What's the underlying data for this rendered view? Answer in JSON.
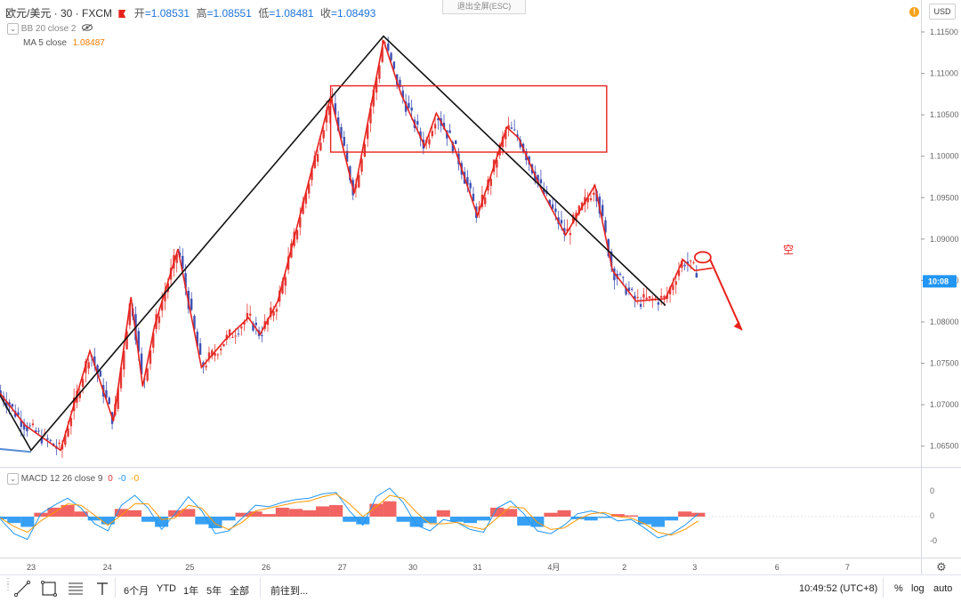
{
  "header": {
    "symbol": "欧元/美元 · 30 · FXCM",
    "open_label": "开",
    "open": "=1.08531",
    "high_label": "高",
    "high": "=1.08551",
    "low_label": "低",
    "low": "=1.08481",
    "close_label": "收",
    "close": "=1.08493",
    "exit_fullscreen": "退出全屏(ESC)",
    "currency": "USD",
    "alert_badge": "!"
  },
  "indicators": {
    "bb": "BB 20 close 2",
    "ma": "MA 5 close",
    "ma_value": "1.08487",
    "macd": "MACD 12 26 close 9",
    "macd_v1": "0",
    "macd_v2": "-0",
    "macd_v3": "-0"
  },
  "chart_data": {
    "type": "line",
    "price_axis": {
      "ticks": [
        "1.11500",
        "1.11000",
        "1.10500",
        "1.10000",
        "1.09500",
        "1.09000",
        "1.08500",
        "1.08000",
        "1.07500",
        "1.07000",
        "1.06500"
      ],
      "ylim": [
        1.0625,
        1.1165
      ],
      "current_label": "10:08",
      "current_price": 1.0849
    },
    "macd_axis": {
      "ticks": [
        "0",
        "0",
        "-0"
      ]
    },
    "x_ticks": [
      "23",
      "24",
      "25",
      "26",
      "27",
      "30",
      "31",
      "4月",
      "2",
      "3",
      "6",
      "7"
    ],
    "x_tick_index": [
      0,
      6.5,
      13.5,
      20,
      26.5,
      32.5,
      38,
      44.5,
      50.5,
      56.5,
      63.5,
      69.5
    ],
    "price_path_x": [
      -3,
      -0.5,
      2.5,
      5,
      7,
      8.5,
      9.5,
      10.5,
      12.5,
      14.5,
      16.5,
      18.5,
      19.5,
      21,
      25.5,
      27.5,
      30,
      31.5,
      33.5,
      34.5,
      36,
      38,
      40.5,
      41.5,
      43.5,
      45.5,
      48,
      49.5,
      51.5,
      54,
      55.5,
      56.5,
      58
    ],
    "price_path_y": [
      1.072,
      1.0675,
      1.0645,
      1.0765,
      1.068,
      1.083,
      1.0722,
      1.0795,
      1.0888,
      1.0745,
      1.0778,
      1.0805,
      1.0785,
      1.0825,
      1.1072,
      1.0955,
      1.114,
      1.1075,
      1.1012,
      1.1052,
      1.1012,
      1.0928,
      1.1035,
      1.1022,
      1.0958,
      1.0905,
      1.0965,
      1.0862,
      1.0825,
      1.0828,
      1.0875,
      1.0862,
      1.0865
    ],
    "annotations": {
      "zigzag_black_x": [
        -3,
        0,
        30,
        54
      ],
      "zigzag_black_y": [
        1.072,
        1.0645,
        1.1145,
        1.082
      ],
      "box": {
        "x_start": 25.5,
        "x_end": 49,
        "y_top": 1.1085,
        "y_bottom": 1.1005
      },
      "short_label": "空",
      "forecast_arrow_x": [
        56.5,
        60.5
      ],
      "forecast_arrow_y": [
        1.0878,
        1.079
      ],
      "blue_trendline_x": [
        -3,
        0
      ],
      "blue_trendline_y": [
        1.0647,
        1.0643
      ]
    },
    "macd_hist": [
      -0.2,
      -0.5,
      -0.8,
      0.3,
      0.7,
      0.9,
      0.4,
      -0.3,
      -0.6,
      0.6,
      0.5,
      -0.4,
      -0.8,
      0.5,
      0.6,
      -0.6,
      -0.9,
      -0.3,
      0.3,
      0.4,
      0.2,
      0.7,
      0.6,
      0.5,
      0.8,
      0.9,
      -0.4,
      -0.6,
      1.0,
      1.2,
      -0.4,
      -0.8,
      -0.5,
      0.5,
      -0.4,
      -0.5,
      -0.3,
      0.7,
      0.6,
      -0.7,
      -0.8,
      0.3,
      0.5,
      -0.2,
      -0.3,
      -0.1,
      0.2,
      0.1,
      -0.6,
      -0.8,
      -0.3,
      0.4,
      0.3
    ],
    "macd_line": [
      -0.2,
      -1.2,
      -1.6,
      0.2,
      0.8,
      1.3,
      0.6,
      -0.5,
      -1.0,
      0.8,
      1.5,
      0.6,
      -0.9,
      0.2,
      1.4,
      0.4,
      -1.2,
      -1.0,
      -0.1,
      0.8,
      0.7,
      1.0,
      1.2,
      1.3,
      1.6,
      1.7,
      0.4,
      -0.6,
      1.4,
      2.0,
      1.0,
      -0.6,
      -1.0,
      -0.2,
      -0.4,
      -0.9,
      -1.1,
      0.6,
      1.1,
      0.2,
      -1.0,
      -1.2,
      -0.6,
      0.2,
      0.4,
      0.2,
      -0.3,
      -0.2,
      -0.8,
      -1.5,
      -1.2,
      -0.6,
      0.2
    ],
    "signal_line": [
      -0.1,
      -0.7,
      -1.1,
      -0.3,
      0.3,
      0.9,
      0.8,
      0.1,
      -0.6,
      0.1,
      0.9,
      0.9,
      -0.2,
      -0.1,
      0.8,
      0.6,
      -0.5,
      -0.9,
      -0.4,
      0.4,
      0.6,
      0.8,
      1.0,
      1.1,
      1.4,
      1.6,
      0.9,
      0.0,
      0.7,
      1.5,
      1.3,
      0.3,
      -0.5,
      -0.5,
      -0.4,
      -0.7,
      -0.9,
      -0.1,
      0.7,
      0.6,
      -0.4,
      -0.9,
      -0.8,
      -0.2,
      0.2,
      0.3,
      0.0,
      -0.1,
      -0.5,
      -1.1,
      -1.3,
      -0.9,
      -0.3
    ],
    "colors": {
      "annotation_red": "#e8221d",
      "zigzag_black": "#111111",
      "bull_candle": "#e53935",
      "bear_candle": "#3f51b5",
      "macd_line": "#2196f3",
      "signal_line": "#ff9800",
      "hist_up": "#ef5350",
      "hist_down": "#2196f3",
      "price_tag": "#2196f3"
    }
  },
  "bottom_toolbar": {
    "ranges": [
      "6个月",
      "YTD",
      "1年",
      "5年",
      "全部"
    ],
    "goto": "前往到...",
    "clock": "10:49:52 (UTC+8)",
    "percent": "%",
    "log": "log",
    "auto": "auto"
  }
}
